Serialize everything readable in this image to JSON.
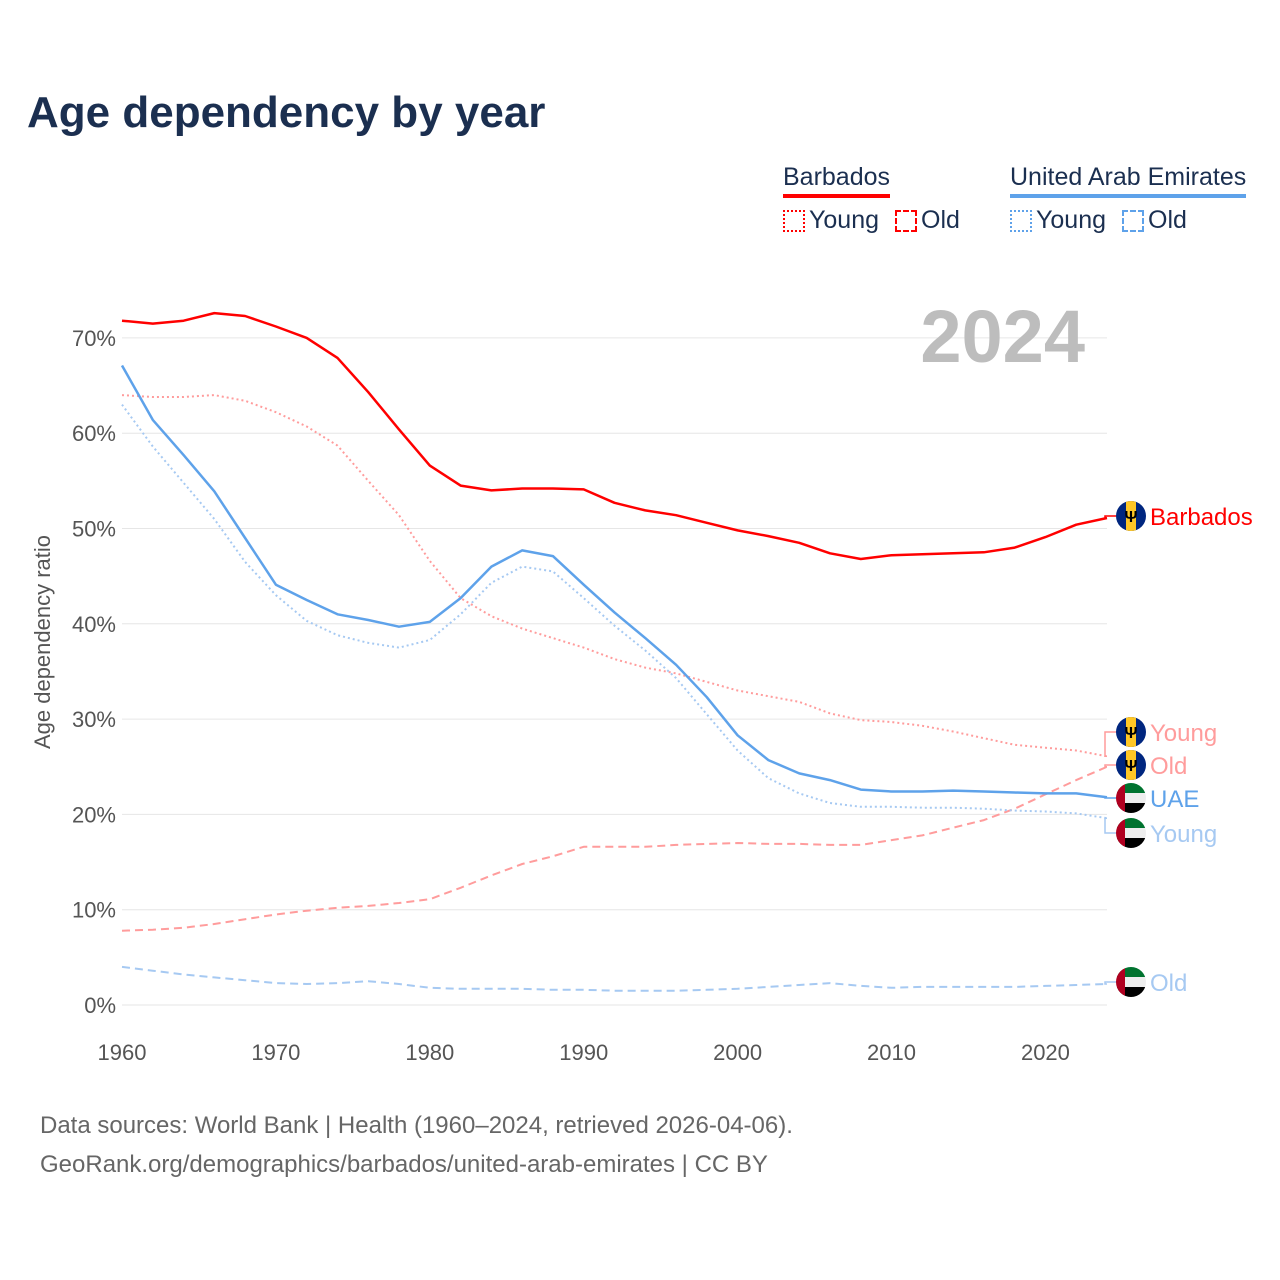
{
  "title": "Age dependency by year",
  "legend": {
    "groups": [
      {
        "name": "Barbados",
        "color": "#ff0000",
        "light": "#ff0000",
        "items": [
          "Young",
          "Old"
        ]
      },
      {
        "name": "United Arab Emirates",
        "color": "#5ea2ea",
        "light": "#5ea2ea",
        "items": [
          "Young",
          "Old"
        ]
      }
    ]
  },
  "source": {
    "line1": "Data sources: World Bank | Health (1960–2024, retrieved 2026-04-06).",
    "line2": "GeoRank.org/demographics/barbados/united-arab-emirates | CC BY"
  },
  "chart_data": {
    "type": "line",
    "title": "Age dependency by year",
    "xlabel": "",
    "ylabel": "Age dependency ratio",
    "year_watermark": "2024",
    "xlim": [
      1960,
      2024
    ],
    "ylim": [
      0,
      75
    ],
    "x_ticks": [
      "1960",
      "1970",
      "1980",
      "1990",
      "2000",
      "2010",
      "2020"
    ],
    "y_ticks": [
      "0%",
      "10%",
      "20%",
      "30%",
      "40%",
      "50%",
      "60%",
      "70%"
    ],
    "grid": true,
    "x": [
      1960,
      1962,
      1964,
      1966,
      1968,
      1970,
      1972,
      1974,
      1976,
      1978,
      1980,
      1982,
      1984,
      1986,
      1988,
      1990,
      1992,
      1994,
      1996,
      1998,
      2000,
      2002,
      2004,
      2006,
      2008,
      2010,
      2012,
      2014,
      2016,
      2018,
      2020,
      2022,
      2024
    ],
    "series": [
      {
        "name": "Barbados",
        "end_label": "Barbados",
        "country": "Barbados",
        "style": "solid",
        "color": "#ff0000",
        "values": [
          71.8,
          71.5,
          71.8,
          72.6,
          72.3,
          71.2,
          70.0,
          67.9,
          64.3,
          60.4,
          56.6,
          54.5,
          54.0,
          54.2,
          54.2,
          54.1,
          52.7,
          51.9,
          51.4,
          50.6,
          49.8,
          49.2,
          48.5,
          47.4,
          46.8,
          47.2,
          47.3,
          47.4,
          47.5,
          48.0,
          49.1,
          50.4,
          51.1
        ]
      },
      {
        "name": "Barbados Young",
        "end_label": "Young",
        "country": "Barbados",
        "style": "dotted",
        "color": "#ff9c9c",
        "values": [
          64.0,
          63.8,
          63.8,
          64.0,
          63.4,
          62.2,
          60.7,
          58.7,
          55.0,
          51.4,
          46.6,
          42.7,
          40.8,
          39.5,
          38.5,
          37.5,
          36.3,
          35.4,
          34.8,
          33.9,
          33.0,
          32.4,
          31.8,
          30.6,
          29.9,
          29.7,
          29.3,
          28.7,
          28.0,
          27.3,
          27.0,
          26.7,
          26.1
        ]
      },
      {
        "name": "Barbados Old",
        "end_label": "Old",
        "country": "Barbados",
        "style": "dashed",
        "color": "#ff9c9c",
        "values": [
          7.8,
          7.9,
          8.1,
          8.5,
          9.0,
          9.5,
          9.9,
          10.2,
          10.4,
          10.7,
          11.1,
          12.3,
          13.6,
          14.8,
          15.6,
          16.6,
          16.6,
          16.6,
          16.8,
          16.9,
          17.0,
          16.9,
          16.9,
          16.8,
          16.8,
          17.3,
          17.8,
          18.6,
          19.4,
          20.6,
          22.1,
          23.6,
          25.0
        ]
      },
      {
        "name": "United Arab Emirates",
        "end_label": "UAE",
        "country": "UAE",
        "style": "solid",
        "color": "#5ea2ea",
        "values": [
          67.1,
          61.4,
          57.7,
          53.9,
          49.0,
          44.1,
          42.5,
          41.0,
          40.4,
          39.7,
          40.2,
          42.7,
          46.0,
          47.7,
          47.1,
          44.1,
          41.2,
          38.5,
          35.7,
          32.3,
          28.3,
          25.7,
          24.3,
          23.6,
          22.6,
          22.4,
          22.4,
          22.5,
          22.4,
          22.3,
          22.2,
          22.2,
          21.8
        ]
      },
      {
        "name": "United Arab Emirates Young",
        "end_label": "Young",
        "country": "UAE",
        "style": "dotted",
        "color": "#a6c9f2",
        "values": [
          63.0,
          58.6,
          54.8,
          51.0,
          46.5,
          43.0,
          40.3,
          38.8,
          38.0,
          37.5,
          38.3,
          41.0,
          44.3,
          46.0,
          45.5,
          42.7,
          39.8,
          37.2,
          34.3,
          30.5,
          26.7,
          23.8,
          22.2,
          21.2,
          20.8,
          20.8,
          20.7,
          20.7,
          20.6,
          20.4,
          20.3,
          20.1,
          19.6
        ]
      },
      {
        "name": "United Arab Emirates Old",
        "end_label": "Old",
        "country": "UAE",
        "style": "dashed",
        "color": "#a6c9f2",
        "values": [
          4.0,
          3.6,
          3.2,
          2.9,
          2.6,
          2.3,
          2.2,
          2.3,
          2.5,
          2.2,
          1.8,
          1.7,
          1.7,
          1.7,
          1.6,
          1.6,
          1.5,
          1.5,
          1.5,
          1.6,
          1.7,
          1.9,
          2.1,
          2.3,
          2.0,
          1.8,
          1.9,
          1.9,
          1.9,
          1.9,
          2.0,
          2.1,
          2.2
        ]
      }
    ]
  }
}
